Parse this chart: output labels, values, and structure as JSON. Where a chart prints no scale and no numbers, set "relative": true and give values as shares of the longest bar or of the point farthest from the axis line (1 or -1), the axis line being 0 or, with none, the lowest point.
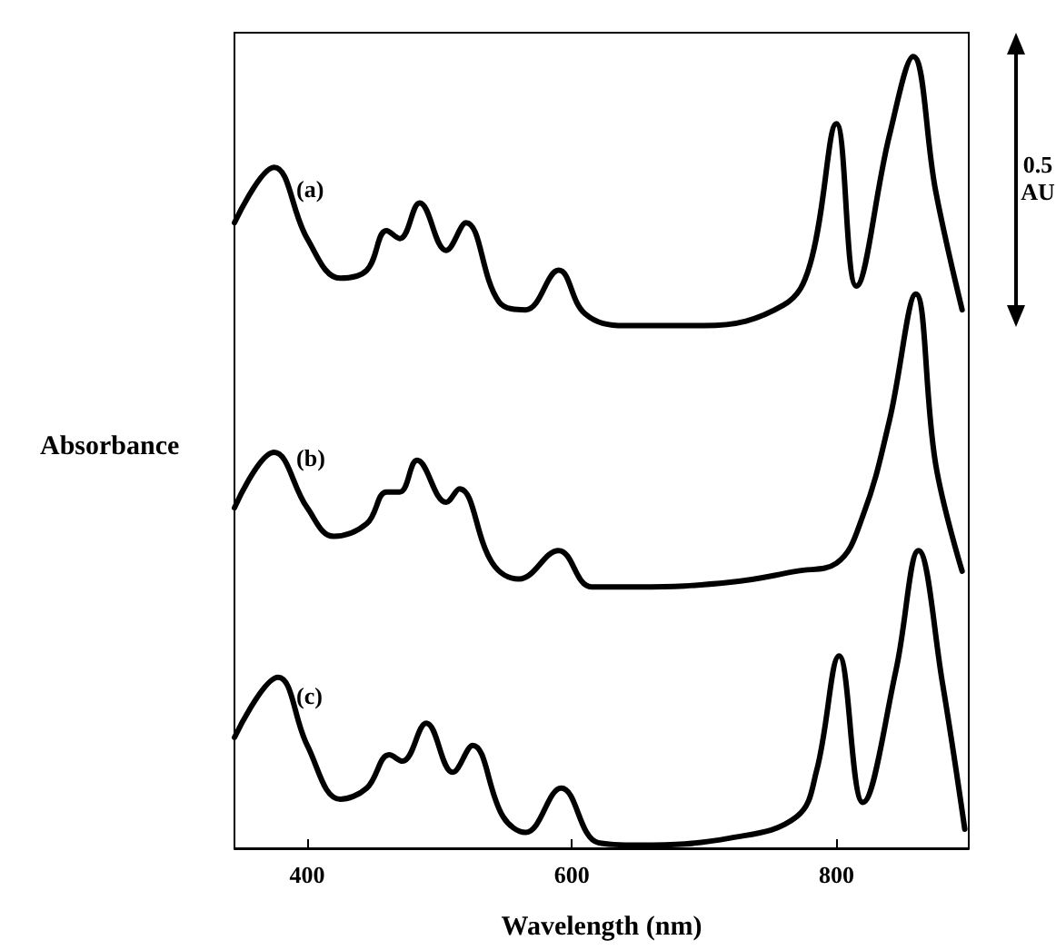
{
  "chart_data": {
    "type": "line",
    "xlabel": "Wavelength (nm)",
    "ylabel": "Absorbance",
    "relative": true,
    "xlim": [
      345,
      900
    ],
    "xticks": [
      400,
      600,
      800
    ],
    "grid": false,
    "legend": false,
    "marker": "none",
    "line_style": "solid",
    "annotations": [
      "0.5 AU"
    ],
    "series": [
      {
        "name": "(a)",
        "color": "#000000",
        "x": [
          345,
          375,
          400,
          425,
          445,
          460,
          470,
          485,
          505,
          520,
          545,
          565,
          590,
          610,
          640,
          700,
          760,
          780,
          800,
          815,
          840,
          858,
          875,
          895
        ],
        "values": [
          0.79,
          0.86,
          0.77,
          0.72,
          0.73,
          0.78,
          0.77,
          0.815,
          0.755,
          0.79,
          0.69,
          0.68,
          0.73,
          0.675,
          0.66,
          0.66,
          0.686,
          0.737,
          0.915,
          0.71,
          0.9,
          1.0,
          0.83,
          0.68
        ]
      },
      {
        "name": "(b)",
        "color": "#000000",
        "x": [
          345,
          375,
          400,
          420,
          445,
          460,
          470,
          483,
          505,
          515,
          540,
          560,
          590,
          615,
          650,
          720,
          770,
          800,
          820,
          840,
          860,
          875,
          895
        ],
        "values": [
          0.43,
          0.5,
          0.43,
          0.394,
          0.41,
          0.45,
          0.45,
          0.49,
          0.437,
          0.454,
          0.36,
          0.34,
          0.376,
          0.33,
          0.33,
          0.336,
          0.35,
          0.36,
          0.42,
          0.54,
          0.7,
          0.485,
          0.35
        ]
      },
      {
        "name": "(c)",
        "color": "#000000",
        "x": [
          345,
          378,
          400,
          425,
          445,
          462,
          472,
          490,
          510,
          525,
          548,
          565,
          592,
          620,
          650,
          720,
          770,
          785,
          802,
          820,
          845,
          862,
          880,
          897
        ],
        "values": [
          0.14,
          0.216,
          0.13,
          0.062,
          0.076,
          0.118,
          0.11,
          0.158,
          0.096,
          0.13,
          0.04,
          0.02,
          0.076,
          0.007,
          0.004,
          0.013,
          0.04,
          0.098,
          0.243,
          0.058,
          0.225,
          0.376,
          0.21,
          0.024
        ]
      }
    ]
  }
}
